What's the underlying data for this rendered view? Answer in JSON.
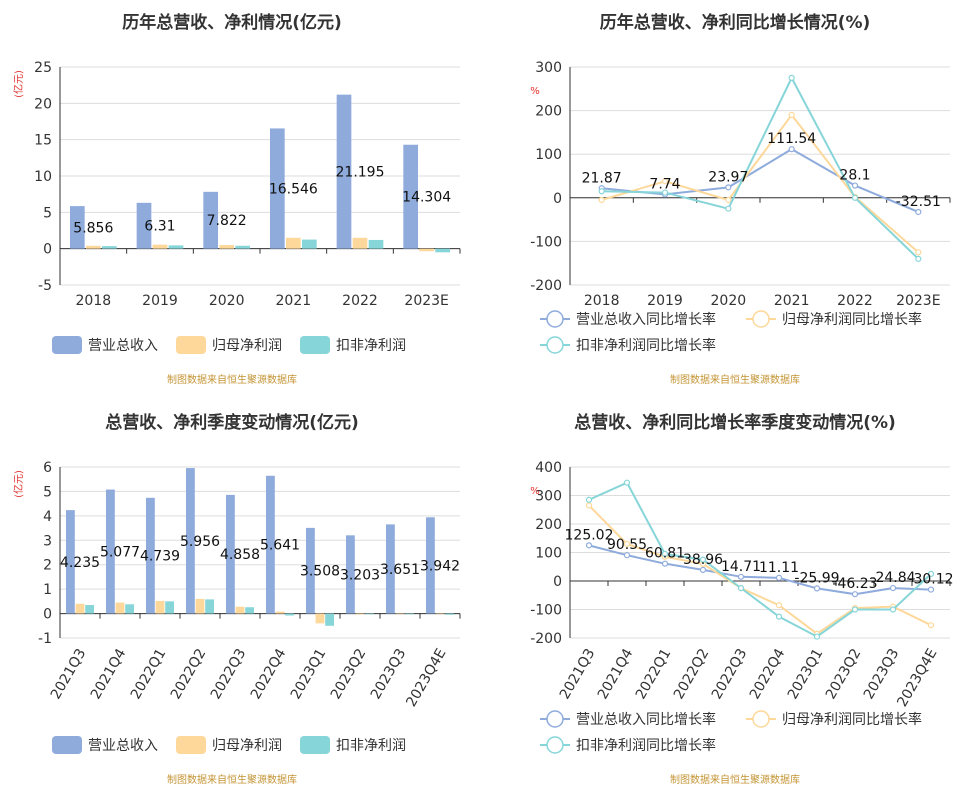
{
  "colors": {
    "revenue": "#8eabdc",
    "net_profit": "#fdd89a",
    "deducted_profit": "#86d5d8",
    "title": "#333333",
    "unit": "#e0302c",
    "source": "#c49535",
    "axis_text": "#333333",
    "grid": "#dddddd",
    "axis": "#333333"
  },
  "legend_labels": {
    "bars": [
      "营业总收入",
      "归母净利润",
      "扣非净利润"
    ],
    "lines": [
      "营业总收入同比增长率",
      "归母净利润同比增长率",
      "扣非净利润同比增长率"
    ]
  },
  "source_note": "制图数据来自恒生聚源数据库",
  "chart_data": [
    {
      "id": "annual-amount",
      "type": "bar",
      "title": "历年总营收、净利情况(亿元)",
      "ylabel": "(亿元)",
      "ylim": [
        -5,
        25
      ],
      "yticks": [
        -5,
        0,
        5,
        10,
        15,
        20,
        25
      ],
      "categories": [
        "2018",
        "2019",
        "2020",
        "2021",
        "2022",
        "2023E"
      ],
      "series": [
        {
          "name": "营业总收入",
          "values": [
            5.856,
            6.31,
            7.822,
            16.546,
            21.195,
            14.304
          ],
          "labels": [
            "5.856",
            "6.31",
            "7.822",
            "16.546",
            "21.195",
            "14.304"
          ]
        },
        {
          "name": "归母净利润",
          "values": [
            0.4,
            0.55,
            0.5,
            1.5,
            1.5,
            -0.35
          ]
        },
        {
          "name": "扣非净利润",
          "values": [
            0.35,
            0.45,
            0.4,
            1.25,
            1.2,
            -0.5
          ]
        }
      ],
      "grid": true,
      "legend": "bottom"
    },
    {
      "id": "annual-growth",
      "type": "line",
      "title": "历年总营收、净利同比增长情况(%)",
      "ylabel": "%",
      "ylim": [
        -200,
        300
      ],
      "yticks": [
        -200,
        -100,
        0,
        100,
        200,
        300
      ],
      "categories": [
        "2018",
        "2019",
        "2020",
        "2021",
        "2022",
        "2023E"
      ],
      "series": [
        {
          "name": "营业总收入同比增长率",
          "values": [
            21.87,
            7.74,
            23.97,
            111.54,
            28.1,
            -32.51
          ],
          "labels": [
            "21.87",
            "7.74",
            "23.97",
            "111.54",
            "28.1",
            "-32.51"
          ]
        },
        {
          "name": "归母净利润同比增长率",
          "values": [
            -5,
            38,
            -5,
            190,
            2,
            -125
          ]
        },
        {
          "name": "扣非净利润同比增长率",
          "values": [
            15,
            12,
            -25,
            275,
            0,
            -140
          ]
        }
      ],
      "grid": true,
      "legend": "bottom"
    },
    {
      "id": "quarterly-amount",
      "type": "bar",
      "title": "总营收、净利季度变动情况(亿元)",
      "ylabel": "(亿元)",
      "ylim": [
        -1,
        6
      ],
      "yticks": [
        -1,
        0,
        1,
        2,
        3,
        4,
        5,
        6
      ],
      "categories": [
        "2021Q3",
        "2021Q4",
        "2022Q1",
        "2022Q2",
        "2022Q3",
        "2022Q4",
        "2023Q1",
        "2023Q2",
        "2023Q3",
        "2023Q4E"
      ],
      "series": [
        {
          "name": "营业总收入",
          "values": [
            4.235,
            5.077,
            4.739,
            5.956,
            4.858,
            5.641,
            3.508,
            3.203,
            3.651,
            3.942
          ],
          "labels": [
            "4.235",
            "5.077",
            "4.739",
            "5.956",
            "4.858",
            "5.641",
            "3.508",
            "3.203",
            "3.651",
            "3.942"
          ]
        },
        {
          "name": "归母净利润",
          "values": [
            0.4,
            0.45,
            0.52,
            0.6,
            0.28,
            0.08,
            -0.4,
            -0.03,
            -0.02,
            0.0
          ]
        },
        {
          "name": "扣非净利润",
          "values": [
            0.35,
            0.38,
            0.5,
            0.58,
            0.26,
            -0.08,
            -0.5,
            -0.03,
            -0.03,
            -0.05
          ]
        }
      ],
      "grid": true,
      "legend": "bottom"
    },
    {
      "id": "quarterly-growth",
      "type": "line",
      "title": "总营收、净利同比增长率季度变动情况(%)",
      "ylabel": "%",
      "ylim": [
        -200,
        400
      ],
      "yticks": [
        -200,
        -100,
        0,
        100,
        200,
        300,
        400
      ],
      "categories": [
        "2021Q3",
        "2021Q4",
        "2022Q1",
        "2022Q2",
        "2022Q3",
        "2022Q4",
        "2023Q1",
        "2023Q2",
        "2023Q3",
        "2023Q4E"
      ],
      "series": [
        {
          "name": "营业总收入同比增长率",
          "values": [
            125.02,
            90.55,
            60.81,
            38.96,
            14.71,
            11.11,
            -25.99,
            -46.23,
            -24.84,
            -30.12
          ],
          "labels": [
            "125.02",
            "90.55",
            "60.81",
            "38.96",
            "14.71",
            "11.11",
            "-25.99",
            "-46.23",
            "-24.84",
            "-30.12"
          ]
        },
        {
          "name": "归母净利润同比增长率",
          "values": [
            265,
            130,
            85,
            60,
            -25,
            -85,
            -185,
            -95,
            -90,
            -155
          ]
        },
        {
          "name": "扣非净利润同比增长率",
          "values": [
            285,
            345,
            95,
            75,
            -25,
            -125,
            -195,
            -100,
            -100,
            25
          ]
        }
      ],
      "grid": true,
      "legend": "bottom"
    }
  ]
}
